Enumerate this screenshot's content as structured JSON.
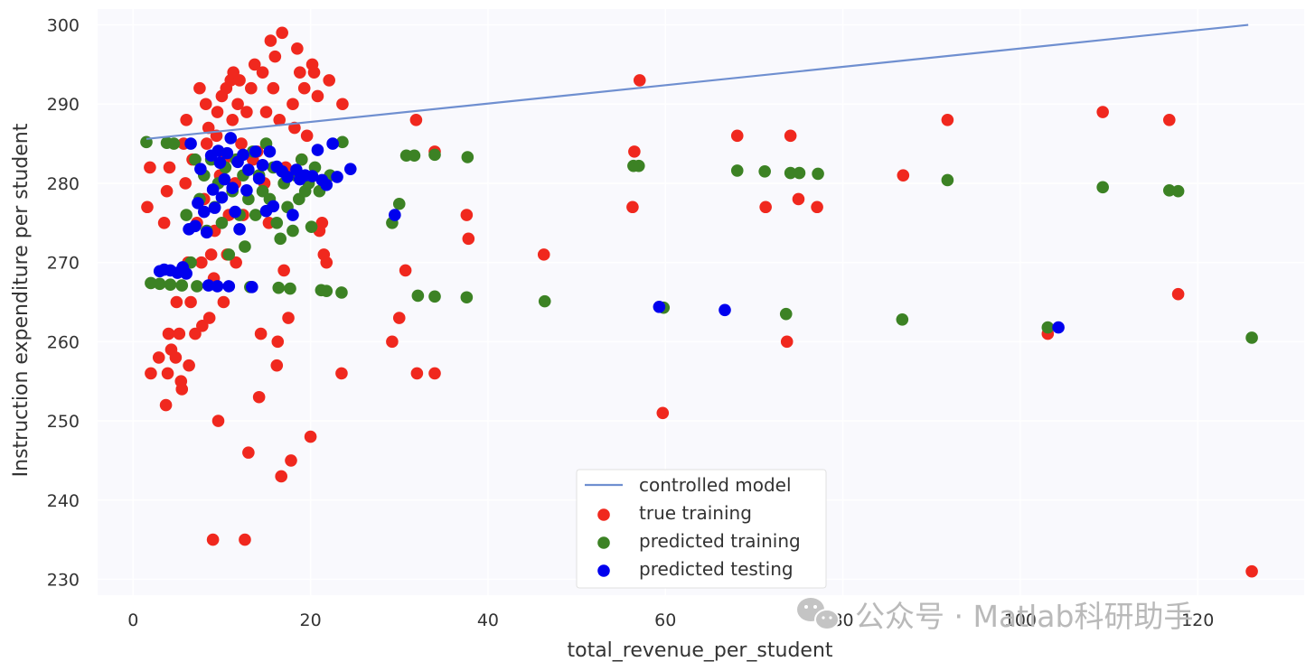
{
  "chart_data": {
    "type": "scatter",
    "title": "",
    "xlabel": "total_revenue_per_student",
    "ylabel": "Instruction expenditure per student",
    "xlim": [
      -4,
      132
    ],
    "ylim": [
      228,
      302
    ],
    "xticks": [
      0,
      20,
      40,
      60,
      80,
      100,
      120
    ],
    "yticks": [
      230,
      240,
      250,
      260,
      270,
      280,
      290,
      300
    ],
    "grid": true,
    "legend_position": "lower center",
    "colors": {
      "background": "#f9f9fd",
      "grid": "#ffffff",
      "model_line": "#6f8fd0",
      "true_training": "#f0281e",
      "predicted_training": "#3c8224",
      "predicted_testing": "#0000ee"
    },
    "series": [
      {
        "name": "controlled model",
        "kind": "line",
        "points": [
          [
            1.5,
            285.6
          ],
          [
            125.7,
            300.0
          ]
        ]
      },
      {
        "name": "true training",
        "kind": "scatter",
        "points": [
          [
            1.6,
            277
          ],
          [
            1.9,
            282
          ],
          [
            2.0,
            256
          ],
          [
            2.9,
            258
          ],
          [
            3.7,
            252
          ],
          [
            3.8,
            279
          ],
          [
            3.5,
            275
          ],
          [
            3.9,
            256
          ],
          [
            4.0,
            261
          ],
          [
            4.1,
            282
          ],
          [
            4.3,
            259
          ],
          [
            4.8,
            258
          ],
          [
            4.9,
            265
          ],
          [
            5.2,
            261
          ],
          [
            5.4,
            255
          ],
          [
            5.5,
            254
          ],
          [
            5.7,
            285
          ],
          [
            5.9,
            280
          ],
          [
            6.0,
            288
          ],
          [
            6.2,
            270
          ],
          [
            6.3,
            257
          ],
          [
            6.5,
            265
          ],
          [
            6.7,
            283
          ],
          [
            7.0,
            261
          ],
          [
            7.2,
            275
          ],
          [
            7.5,
            292
          ],
          [
            7.7,
            270
          ],
          [
            7.8,
            262
          ],
          [
            8.0,
            278
          ],
          [
            8.2,
            290
          ],
          [
            8.3,
            285
          ],
          [
            8.5,
            287
          ],
          [
            8.6,
            263
          ],
          [
            8.8,
            271
          ],
          [
            9.0,
            235
          ],
          [
            9.1,
            268
          ],
          [
            9.2,
            274
          ],
          [
            9.4,
            286
          ],
          [
            9.5,
            289
          ],
          [
            9.6,
            250
          ],
          [
            9.8,
            281
          ],
          [
            10.0,
            291
          ],
          [
            10.2,
            265
          ],
          [
            10.3,
            283
          ],
          [
            10.5,
            292
          ],
          [
            10.6,
            271
          ],
          [
            10.8,
            276
          ],
          [
            11.0,
            293
          ],
          [
            11.2,
            288
          ],
          [
            11.3,
            294
          ],
          [
            11.5,
            280
          ],
          [
            11.6,
            270
          ],
          [
            11.8,
            290
          ],
          [
            12.0,
            293
          ],
          [
            12.2,
            285
          ],
          [
            12.4,
            276
          ],
          [
            12.6,
            235
          ],
          [
            12.8,
            289
          ],
          [
            13.0,
            246
          ],
          [
            13.3,
            292
          ],
          [
            13.5,
            283
          ],
          [
            13.7,
            295
          ],
          [
            14.0,
            284
          ],
          [
            14.2,
            253
          ],
          [
            14.4,
            261
          ],
          [
            14.6,
            294
          ],
          [
            14.8,
            280
          ],
          [
            15.0,
            289
          ],
          [
            15.3,
            275
          ],
          [
            15.5,
            298
          ],
          [
            15.8,
            292
          ],
          [
            16.0,
            296
          ],
          [
            16.2,
            257
          ],
          [
            16.3,
            260
          ],
          [
            16.5,
            288
          ],
          [
            16.7,
            243
          ],
          [
            16.8,
            299
          ],
          [
            17.0,
            269
          ],
          [
            17.2,
            282
          ],
          [
            17.5,
            263
          ],
          [
            17.8,
            245
          ],
          [
            18.0,
            290
          ],
          [
            18.2,
            287
          ],
          [
            18.5,
            297
          ],
          [
            18.8,
            294
          ],
          [
            19.0,
            283
          ],
          [
            19.3,
            292
          ],
          [
            19.6,
            286
          ],
          [
            20.0,
            248
          ],
          [
            20.2,
            295
          ],
          [
            20.4,
            294
          ],
          [
            20.8,
            291
          ],
          [
            21.0,
            274
          ],
          [
            21.3,
            275
          ],
          [
            21.5,
            271
          ],
          [
            21.8,
            270
          ],
          [
            22.1,
            293
          ],
          [
            23.5,
            256
          ],
          [
            23.6,
            290
          ],
          [
            29.2,
            260
          ],
          [
            30.0,
            263
          ],
          [
            30.7,
            269
          ],
          [
            31.9,
            288
          ],
          [
            32.0,
            256
          ],
          [
            34.0,
            284
          ],
          [
            34.0,
            256
          ],
          [
            37.6,
            276
          ],
          [
            37.8,
            273
          ],
          [
            46.3,
            271
          ],
          [
            56.5,
            284
          ],
          [
            56.3,
            277
          ],
          [
            57.1,
            293
          ],
          [
            59.7,
            251
          ],
          [
            68.1,
            286
          ],
          [
            71.3,
            277
          ],
          [
            73.7,
            260
          ],
          [
            74.1,
            286
          ],
          [
            75.0,
            278
          ],
          [
            77.1,
            277
          ],
          [
            86.8,
            281
          ],
          [
            91.8,
            288
          ],
          [
            103.1,
            261
          ],
          [
            109.3,
            289
          ],
          [
            116.8,
            288
          ],
          [
            117.8,
            266
          ],
          [
            126.1,
            231
          ]
        ]
      },
      {
        "name": "predicted training",
        "kind": "scatter",
        "points": [
          [
            1.5,
            285.2
          ],
          [
            2.0,
            267.4
          ],
          [
            3.0,
            267.3
          ],
          [
            3.8,
            285.1
          ],
          [
            4.2,
            267.2
          ],
          [
            4.6,
            285.0
          ],
          [
            5.5,
            267.1
          ],
          [
            6.0,
            276
          ],
          [
            6.5,
            270
          ],
          [
            7.0,
            283
          ],
          [
            7.2,
            267.0
          ],
          [
            7.5,
            278
          ],
          [
            8.0,
            281
          ],
          [
            8.3,
            274
          ],
          [
            8.8,
            283
          ],
          [
            9.2,
            277
          ],
          [
            9.6,
            280
          ],
          [
            10.0,
            275
          ],
          [
            10.4,
            282
          ],
          [
            10.8,
            271
          ],
          [
            11.2,
            279
          ],
          [
            11.6,
            283
          ],
          [
            12.0,
            276
          ],
          [
            12.4,
            281
          ],
          [
            12.6,
            272
          ],
          [
            13.0,
            278
          ],
          [
            13.2,
            266.9
          ],
          [
            13.5,
            284
          ],
          [
            13.8,
            276
          ],
          [
            14.2,
            281
          ],
          [
            14.6,
            279
          ],
          [
            15.0,
            285
          ],
          [
            15.4,
            278
          ],
          [
            15.8,
            282
          ],
          [
            16.2,
            275
          ],
          [
            16.4,
            266.8
          ],
          [
            16.6,
            273
          ],
          [
            17.0,
            280
          ],
          [
            17.4,
            277
          ],
          [
            17.7,
            266.7
          ],
          [
            18.0,
            274
          ],
          [
            18.3,
            281
          ],
          [
            18.7,
            278
          ],
          [
            19.0,
            283
          ],
          [
            19.4,
            279
          ],
          [
            19.8,
            280
          ],
          [
            20.1,
            274.5
          ],
          [
            20.5,
            282
          ],
          [
            21.0,
            279
          ],
          [
            21.2,
            266.5
          ],
          [
            21.8,
            266.4
          ],
          [
            22.2,
            281
          ],
          [
            23.5,
            266.2
          ],
          [
            23.6,
            285.2
          ],
          [
            29.2,
            275
          ],
          [
            30.0,
            277.4
          ],
          [
            30.8,
            283.5
          ],
          [
            31.7,
            283.5
          ],
          [
            32.1,
            265.8
          ],
          [
            34.0,
            283.6
          ],
          [
            34.0,
            265.7
          ],
          [
            37.7,
            283.3
          ],
          [
            37.6,
            265.6
          ],
          [
            46.4,
            265.1
          ],
          [
            56.4,
            282.2
          ],
          [
            57.0,
            282.2
          ],
          [
            59.8,
            264.3
          ],
          [
            68.1,
            281.6
          ],
          [
            71.2,
            281.5
          ],
          [
            73.6,
            263.5
          ],
          [
            74.1,
            281.3
          ],
          [
            75.1,
            281.3
          ],
          [
            77.2,
            281.2
          ],
          [
            86.7,
            262.8
          ],
          [
            91.8,
            280.4
          ],
          [
            103.1,
            261.8
          ],
          [
            109.3,
            279.5
          ],
          [
            116.8,
            279.1
          ],
          [
            117.8,
            279.0
          ],
          [
            126.1,
            260.5
          ]
        ]
      },
      {
        "name": "predicted testing",
        "kind": "scatter",
        "points": [
          [
            3.0,
            268.9
          ],
          [
            3.5,
            269.1
          ],
          [
            4.2,
            269.0
          ],
          [
            5.0,
            268.7
          ],
          [
            5.6,
            269.4
          ],
          [
            6.0,
            268.6
          ],
          [
            6.3,
            274.2
          ],
          [
            6.5,
            285.0
          ],
          [
            7.0,
            274.6
          ],
          [
            7.3,
            277.5
          ],
          [
            7.6,
            281.8
          ],
          [
            8.0,
            276.4
          ],
          [
            8.3,
            273.8
          ],
          [
            8.5,
            267.1
          ],
          [
            8.8,
            283.5
          ],
          [
            9.0,
            279.2
          ],
          [
            9.2,
            276.9
          ],
          [
            9.5,
            267.0
          ],
          [
            9.6,
            284.1
          ],
          [
            9.8,
            282.6
          ],
          [
            10.0,
            278.2
          ],
          [
            10.3,
            280.5
          ],
          [
            10.6,
            283.8
          ],
          [
            10.8,
            267.0
          ],
          [
            11.0,
            285.7
          ],
          [
            11.2,
            279.4
          ],
          [
            11.5,
            276.4
          ],
          [
            11.8,
            282.7
          ],
          [
            12.0,
            274.2
          ],
          [
            12.4,
            283.6
          ],
          [
            12.8,
            279.1
          ],
          [
            13.0,
            281.7
          ],
          [
            13.4,
            266.9
          ],
          [
            13.8,
            284.0
          ],
          [
            14.2,
            280.6
          ],
          [
            14.6,
            282.3
          ],
          [
            15.0,
            276.5
          ],
          [
            15.4,
            284.0
          ],
          [
            15.8,
            277.1
          ],
          [
            16.2,
            282.1
          ],
          [
            16.8,
            281.5
          ],
          [
            17.4,
            280.8
          ],
          [
            18.0,
            276.0
          ],
          [
            18.4,
            281.7
          ],
          [
            18.8,
            280.5
          ],
          [
            19.4,
            281.0
          ],
          [
            20.2,
            280.9
          ],
          [
            20.8,
            284.2
          ],
          [
            21.3,
            280.4
          ],
          [
            21.8,
            279.8
          ],
          [
            22.5,
            285.0
          ],
          [
            23.0,
            280.8
          ],
          [
            24.5,
            281.8
          ],
          [
            29.5,
            276.0
          ],
          [
            59.3,
            264.4
          ],
          [
            66.7,
            264.0
          ],
          [
            104.3,
            261.8
          ]
        ]
      }
    ]
  },
  "watermark": {
    "icon": "wechat-icon",
    "text": "公众号 · Matlab科研助手"
  }
}
